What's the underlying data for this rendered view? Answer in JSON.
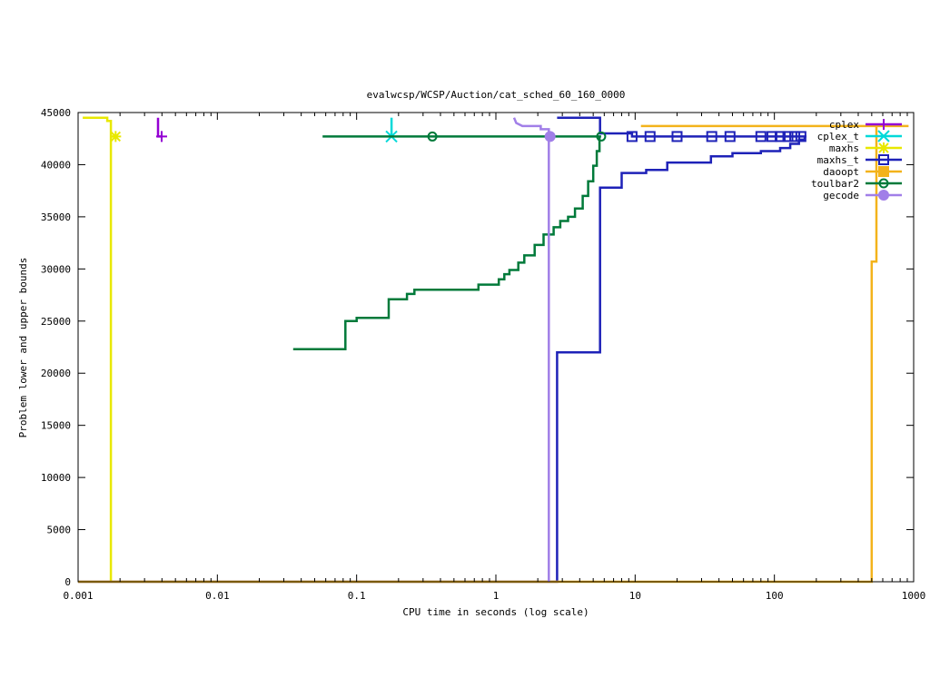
{
  "chart_data": {
    "type": "line",
    "title": "evalwcsp/WCSP/Auction/cat_sched_60_160_0000",
    "xlabel": "CPU time in seconds (log scale)",
    "ylabel": "Problem lower and upper bounds",
    "xscale": "log",
    "xlim": [
      0.001,
      1000
    ],
    "ylim": [
      0,
      45000
    ],
    "xticks": [
      {
        "value": 0.001,
        "label": "0.001"
      },
      {
        "value": 0.01,
        "label": "0.01"
      },
      {
        "value": 0.1,
        "label": "0.1"
      },
      {
        "value": 1,
        "label": "1"
      },
      {
        "value": 10,
        "label": "10"
      },
      {
        "value": 100,
        "label": "100"
      },
      {
        "value": 1000,
        "label": "1000"
      }
    ],
    "yticks": [
      {
        "value": 0,
        "label": "0"
      },
      {
        "value": 5000,
        "label": "5000"
      },
      {
        "value": 10000,
        "label": "10000"
      },
      {
        "value": 15000,
        "label": "15000"
      },
      {
        "value": 20000,
        "label": "20000"
      },
      {
        "value": 25000,
        "label": "25000"
      },
      {
        "value": 30000,
        "label": "30000"
      },
      {
        "value": 35000,
        "label": "35000"
      },
      {
        "value": 40000,
        "label": "40000"
      },
      {
        "value": 45000,
        "label": "45000"
      }
    ],
    "grid": false,
    "legend_position": "top-right",
    "series": [
      {
        "name": "cplex",
        "color": "#9400d3",
        "marker": "plus",
        "lines": [
          [
            [
              0.00375,
              44500
            ],
            [
              0.00375,
              42700
            ],
            [
              0.00398,
              42700
            ]
          ]
        ],
        "markers": [
          [
            0.00398,
            42700
          ]
        ]
      },
      {
        "name": "cplex_t",
        "color": "#00d9d9",
        "marker": "cross",
        "lines": [
          [
            [
              0.178,
              44500
            ],
            [
              0.178,
              42700
            ]
          ]
        ],
        "markers": [
          [
            0.178,
            42700
          ]
        ]
      },
      {
        "name": "maxhs",
        "color": "#e8e800",
        "marker": "star",
        "lines": [
          [
            [
              0.00108,
              44500
            ],
            [
              0.00162,
              44500
            ],
            [
              0.00162,
              44200
            ],
            [
              0.00172,
              44200
            ],
            [
              0.00172,
              0
            ]
          ],
          [
            [
              0.00172,
              42700
            ],
            [
              0.00186,
              42700
            ]
          ]
        ],
        "markers": [
          [
            0.00186,
            42700
          ]
        ]
      },
      {
        "name": "maxhs_t",
        "color": "#1e22b8",
        "marker": "square",
        "lines": [
          [
            [
              0.001,
              0
            ],
            [
              2.75,
              0
            ],
            [
              2.75,
              22000
            ],
            [
              5.6,
              22000
            ],
            [
              5.6,
              37800
            ],
            [
              8.0,
              37800
            ],
            [
              8.0,
              39200
            ],
            [
              12.0,
              39200
            ],
            [
              12.0,
              39500
            ],
            [
              17.0,
              39500
            ],
            [
              17.0,
              40200
            ],
            [
              35.0,
              40200
            ],
            [
              35.0,
              40800
            ],
            [
              50.0,
              40800
            ],
            [
              50.0,
              41100
            ],
            [
              80.0,
              41100
            ],
            [
              80.0,
              41300
            ],
            [
              110.0,
              41300
            ],
            [
              110.0,
              41600
            ],
            [
              130.0,
              41600
            ],
            [
              130.0,
              42000
            ],
            [
              150.0,
              42000
            ],
            [
              150.0,
              42400
            ],
            [
              165.0,
              42400
            ],
            [
              165.0,
              42700
            ]
          ],
          [
            [
              2.75,
              44500
            ],
            [
              5.6,
              44500
            ],
            [
              5.6,
              43000
            ],
            [
              9.5,
              43000
            ],
            [
              9.5,
              42700
            ],
            [
              170.0,
              42700
            ]
          ]
        ],
        "markers": [
          [
            9.5,
            42700
          ],
          [
            12.8,
            42700
          ],
          [
            20.0,
            42700
          ],
          [
            35.5,
            42700
          ],
          [
            48.0,
            42700
          ],
          [
            80.0,
            42700
          ],
          [
            96.0,
            42700
          ],
          [
            110.0,
            42700
          ],
          [
            125.0,
            42700
          ],
          [
            140.0,
            42700
          ],
          [
            155.0,
            42700
          ]
        ]
      },
      {
        "name": "daoopt",
        "color": "#f3b31b",
        "marker": "filled-square",
        "lines": [
          [
            [
              11.0,
              43700
            ],
            [
              920.0,
              43700
            ]
          ],
          [
            [
              0.001,
              0
            ],
            [
              500.0,
              0
            ],
            [
              500.0,
              30700
            ],
            [
              540.0,
              30700
            ],
            [
              540.0,
              43700
            ]
          ]
        ],
        "markers": []
      },
      {
        "name": "toulbar2",
        "color": "#007a3a",
        "marker": "circle",
        "lines": [
          [
            [
              0.057,
              42700
            ],
            [
              5.7,
              42700
            ]
          ],
          [
            [
              0.035,
              22300
            ],
            [
              0.083,
              22300
            ],
            [
              0.083,
              25000
            ],
            [
              0.1,
              25000
            ],
            [
              0.1,
              25300
            ],
            [
              0.17,
              25300
            ],
            [
              0.17,
              27100
            ],
            [
              0.23,
              27100
            ],
            [
              0.23,
              27600
            ],
            [
              0.26,
              27600
            ],
            [
              0.26,
              28000
            ],
            [
              0.75,
              28000
            ],
            [
              0.75,
              28500
            ],
            [
              1.05,
              28500
            ],
            [
              1.05,
              29000
            ],
            [
              1.15,
              29000
            ],
            [
              1.15,
              29500
            ],
            [
              1.25,
              29500
            ],
            [
              1.25,
              29900
            ],
            [
              1.45,
              29900
            ],
            [
              1.45,
              30600
            ],
            [
              1.6,
              30600
            ],
            [
              1.6,
              31300
            ],
            [
              1.9,
              31300
            ],
            [
              1.9,
              32300
            ],
            [
              2.2,
              32300
            ],
            [
              2.2,
              33300
            ],
            [
              2.6,
              33300
            ],
            [
              2.6,
              34000
            ],
            [
              2.9,
              34000
            ],
            [
              2.9,
              34600
            ],
            [
              3.3,
              34600
            ],
            [
              3.3,
              35000
            ],
            [
              3.7,
              35000
            ],
            [
              3.7,
              35800
            ],
            [
              4.2,
              35800
            ],
            [
              4.2,
              37000
            ],
            [
              4.6,
              37000
            ],
            [
              4.6,
              38400
            ],
            [
              5.0,
              38400
            ],
            [
              5.0,
              39900
            ],
            [
              5.3,
              39900
            ],
            [
              5.3,
              41300
            ],
            [
              5.55,
              41300
            ],
            [
              5.55,
              42700
            ]
          ]
        ],
        "markers": [
          [
            0.35,
            42700
          ],
          [
            5.7,
            42700
          ]
        ]
      },
      {
        "name": "gecode",
        "color": "#a17fe8",
        "marker": "filled-circle",
        "lines": [
          [
            [
              1.35,
              44500
            ],
            [
              1.4,
              44000
            ],
            [
              1.45,
              43900
            ],
            [
              1.55,
              43700
            ],
            [
              2.1,
              43700
            ],
            [
              2.1,
              43400
            ],
            [
              2.4,
              43400
            ],
            [
              2.4,
              0
            ]
          ],
          [
            [
              2.4,
              42700
            ],
            [
              2.45,
              42700
            ]
          ]
        ],
        "markers": [
          [
            2.45,
            42700
          ]
        ]
      }
    ]
  }
}
